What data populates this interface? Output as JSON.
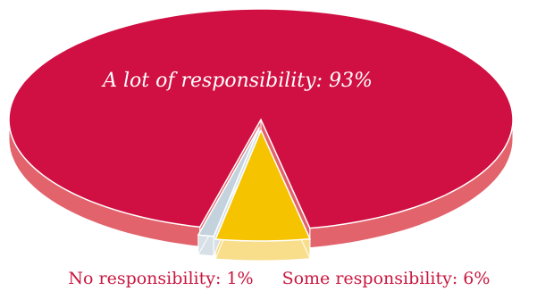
{
  "chart_data": {
    "type": "pie",
    "style": "3d-exploded",
    "slices": [
      {
        "label": "A lot of responsibility: 93%",
        "value": 93,
        "color": "#d01042",
        "side_color": "#e2636b"
      },
      {
        "label": "Some responsibility:  6%",
        "value": 6,
        "color": "#f6c300",
        "side_color": "#f8dd8a"
      },
      {
        "label": "No responsibility: 1%",
        "value": 1,
        "color": "#c3d2dd",
        "side_color": "#d6e0e6"
      }
    ],
    "legend": "none",
    "label_placement": {
      "A lot of responsibility: 93%": "inside",
      "Some responsibility:  6%": "below",
      "No responsibility: 1%": "below"
    }
  }
}
